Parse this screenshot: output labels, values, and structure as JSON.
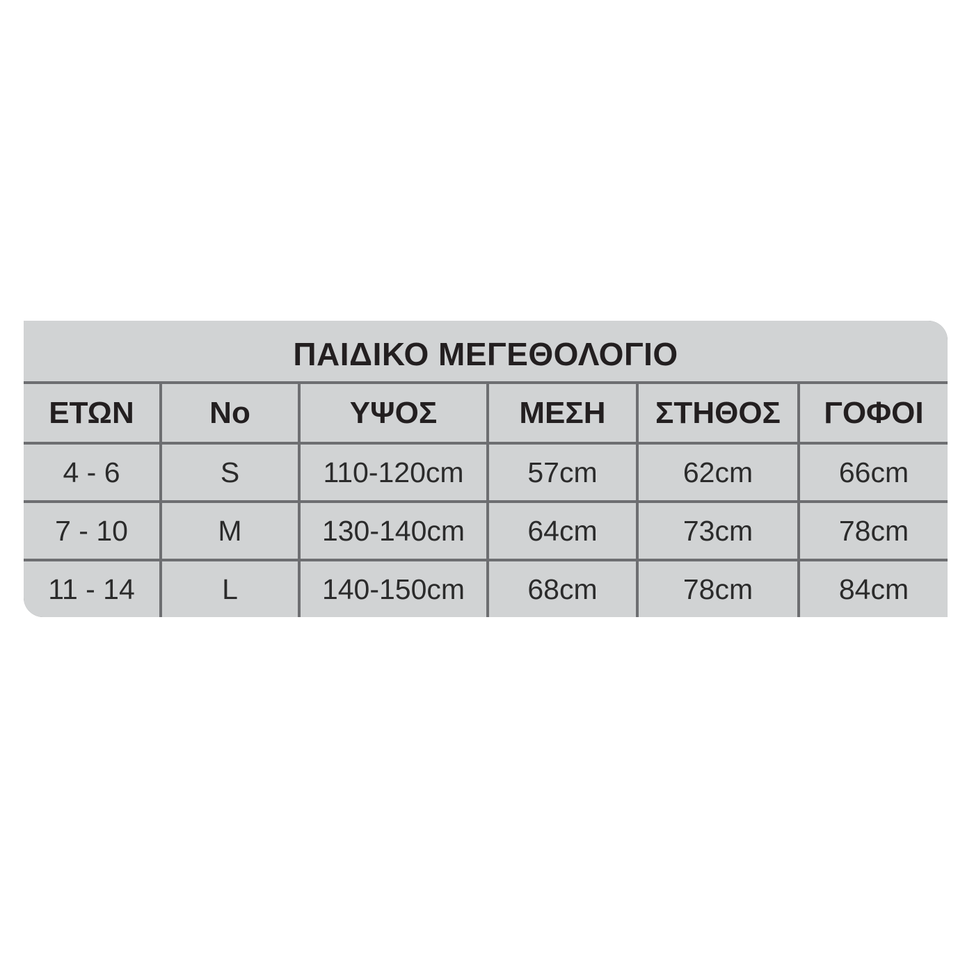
{
  "title": "ΠΑΙΔΙΚΟ ΜΕΓΕΘΟΛΟΓΙΟ",
  "colors": {
    "fill": "#d1d3d4",
    "lines": "#6d6e71",
    "text": "#231f20"
  },
  "columns": [
    "ΕΤΩΝ",
    "No",
    "ΥΨΟΣ",
    "ΜΕΣΗ",
    "ΣΤΗΘΟΣ",
    "ΓΟΦΟΙ"
  ],
  "rows": [
    [
      "4 - 6",
      "S",
      "110-120cm",
      "57cm",
      "62cm",
      "66cm"
    ],
    [
      "7 - 10",
      "M",
      "130-140cm",
      "64cm",
      "73cm",
      "78cm"
    ],
    [
      "11 - 14",
      "L",
      "140-150cm",
      "68cm",
      "78cm",
      "84cm"
    ]
  ]
}
